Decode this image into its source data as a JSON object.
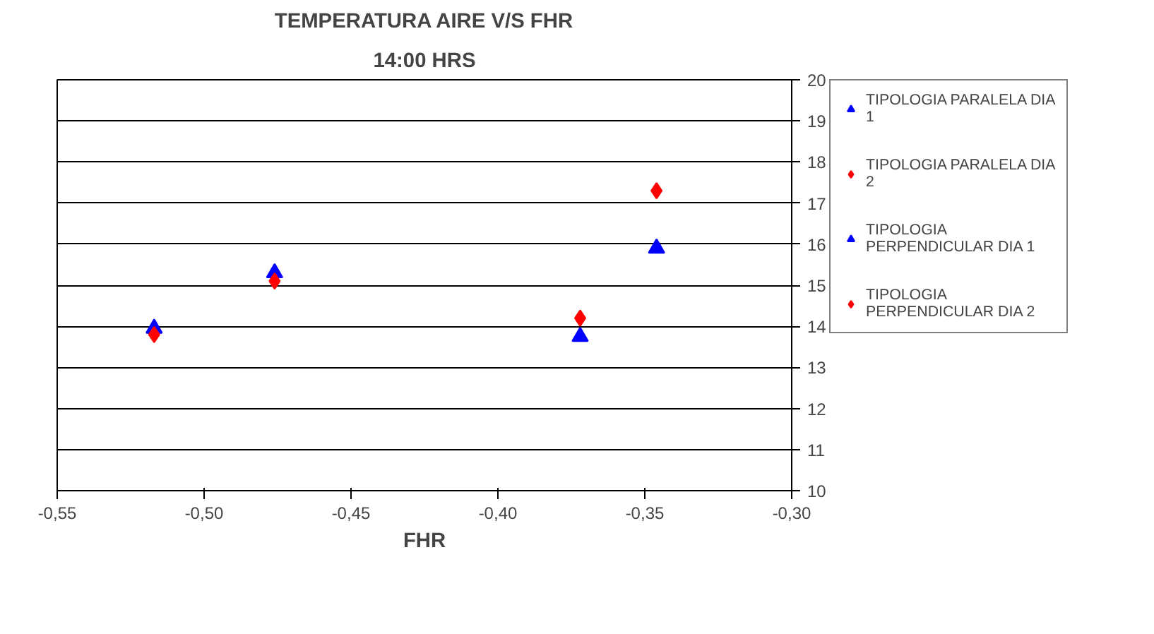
{
  "chart_data": {
    "type": "scatter",
    "title": "TEMPERATURA AIRE V/S FHR",
    "subtitle": "14:00 HRS",
    "xlabel": "FHR",
    "series": [
      {
        "name": "TIPOLOGIA PARALELA DIA 1",
        "color": "#0000ff",
        "marker": "triangle",
        "x": [
          -0.476,
          -0.372
        ],
        "values": [
          15.3,
          13.75
        ]
      },
      {
        "name": "TIPOLOGIA PARALELA DIA 2",
        "color": "#ff0000",
        "marker": "diamond",
        "x": [
          -0.476,
          -0.372
        ],
        "values": [
          15.1,
          14.2
        ]
      },
      {
        "name": "TIPOLOGIA PERPENDICULAR DIA 1",
        "color": "#0000ff",
        "marker": "triangle",
        "x": [
          -0.517,
          -0.346
        ],
        "values": [
          13.95,
          15.9
        ]
      },
      {
        "name": "TIPOLOGIA PERPENDICULAR DIA 2",
        "color": "#ff0000",
        "marker": "diamond",
        "x": [
          -0.517,
          -0.346
        ],
        "values": [
          13.8,
          17.3
        ]
      }
    ],
    "xlim": [
      -0.55,
      -0.3
    ],
    "xticks": [
      {
        "value": -0.55,
        "label": "-0,55"
      },
      {
        "value": -0.5,
        "label": "-0,50"
      },
      {
        "value": -0.45,
        "label": "-0,45"
      },
      {
        "value": -0.4,
        "label": "-0,40"
      },
      {
        "value": -0.35,
        "label": "-0,35"
      },
      {
        "value": -0.3,
        "label": "-0,30"
      }
    ],
    "ylim": [
      10,
      20
    ],
    "yticks": [
      10,
      11,
      12,
      13,
      14,
      15,
      16,
      17,
      18,
      19,
      20
    ],
    "grid": "y",
    "legend": "right"
  }
}
